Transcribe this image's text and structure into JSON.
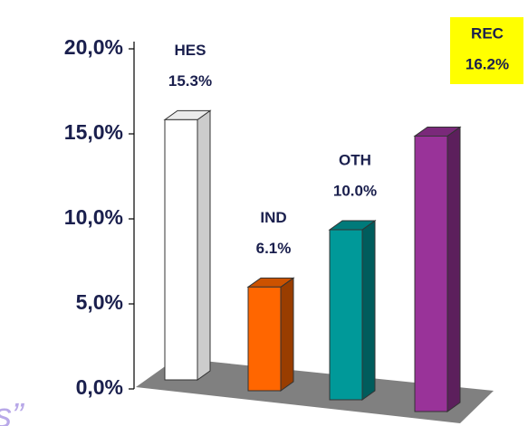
{
  "chart_data": {
    "type": "bar3d",
    "categories": [
      "HES",
      "IND",
      "OTH",
      "REC"
    ],
    "values": [
      15.3,
      6.1,
      10.0,
      16.2
    ],
    "value_labels": [
      "15.3%",
      "6.1%",
      "10.0%",
      "16.2%"
    ],
    "colors": [
      "#ffffff",
      "#ff6600",
      "#009999",
      "#993399"
    ],
    "label_backgrounds": [
      null,
      null,
      null,
      "#ffff00"
    ],
    "ylim": [
      0,
      20
    ],
    "yticks": [
      {
        "value": 0,
        "label": "0,0%"
      },
      {
        "value": 5,
        "label": "5,0%"
      },
      {
        "value": 10,
        "label": "10,0%"
      },
      {
        "value": 15,
        "label": "15,0%"
      },
      {
        "value": 20,
        "label": "20,0%"
      }
    ],
    "floor_color": "#808080"
  },
  "fragment_text": "s”"
}
